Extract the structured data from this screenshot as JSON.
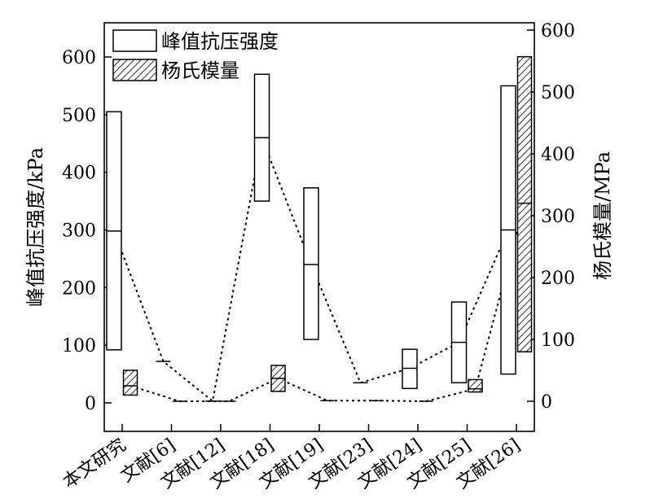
{
  "chart_data": {
    "type": "box-range",
    "ylabel_left": "峰值抗压强度/kPa",
    "ylabel_right": "杨氏模量/MPa",
    "ylim_left": [
      -50,
      650
    ],
    "ylim_right": [
      -40,
      600
    ],
    "yticks_left": [
      0,
      100,
      200,
      300,
      400,
      500,
      600
    ],
    "yticks_right": [
      0,
      100,
      200,
      300,
      400,
      500,
      600
    ],
    "legend_position": "top-left",
    "categories": [
      "本文研究",
      "文献[6]",
      "文献[12]",
      "文献[18]",
      "文献[19]",
      "文献[23]",
      "文献[24]",
      "文献[25]",
      "文献[26]"
    ],
    "series": [
      {
        "name": "峰值抗压强度",
        "axis": "left",
        "style": "open",
        "data": [
          {
            "category": "本文研究",
            "min": 92,
            "median": 298,
            "max": 505
          },
          {
            "category": "文献[6]",
            "min": 72,
            "median": 72,
            "max": 72
          },
          {
            "category": "文献[12]",
            "min": 3,
            "median": 3,
            "max": 3
          },
          {
            "category": "文献[18]",
            "min": 350,
            "median": 460,
            "max": 570
          },
          {
            "category": "文献[19]",
            "min": 110,
            "median": 240,
            "max": 373
          },
          {
            "category": "文献[23]",
            "min": 35,
            "median": 35,
            "max": 35
          },
          {
            "category": "文献[24]",
            "min": 25,
            "median": 60,
            "max": 93
          },
          {
            "category": "文献[25]",
            "min": 35,
            "median": 105,
            "max": 175
          },
          {
            "category": "文献[26]",
            "min": 50,
            "median": 300,
            "max": 550
          }
        ]
      },
      {
        "name": "杨氏模量",
        "axis": "right",
        "style": "hatched",
        "data": [
          {
            "category": "本文研究",
            "min": 10,
            "median": 25,
            "max": 50
          },
          {
            "category": "文献[6]",
            "min": 0,
            "median": 0,
            "max": 0
          },
          {
            "category": "文献[12]",
            "min": 0,
            "median": 0,
            "max": 0
          },
          {
            "category": "文献[18]",
            "min": 16,
            "median": 37,
            "max": 58
          },
          {
            "category": "文献[19]",
            "min": 1,
            "median": 1,
            "max": 1
          },
          {
            "category": "文献[23]",
            "min": 1,
            "median": 1,
            "max": 1
          },
          {
            "category": "文献[24]",
            "min": 0,
            "median": 0,
            "max": 0
          },
          {
            "category": "文献[25]",
            "min": 15,
            "median": 20,
            "max": 35
          },
          {
            "category": "文献[26]",
            "min": 80,
            "median": 320,
            "max": 557
          }
        ]
      }
    ]
  }
}
